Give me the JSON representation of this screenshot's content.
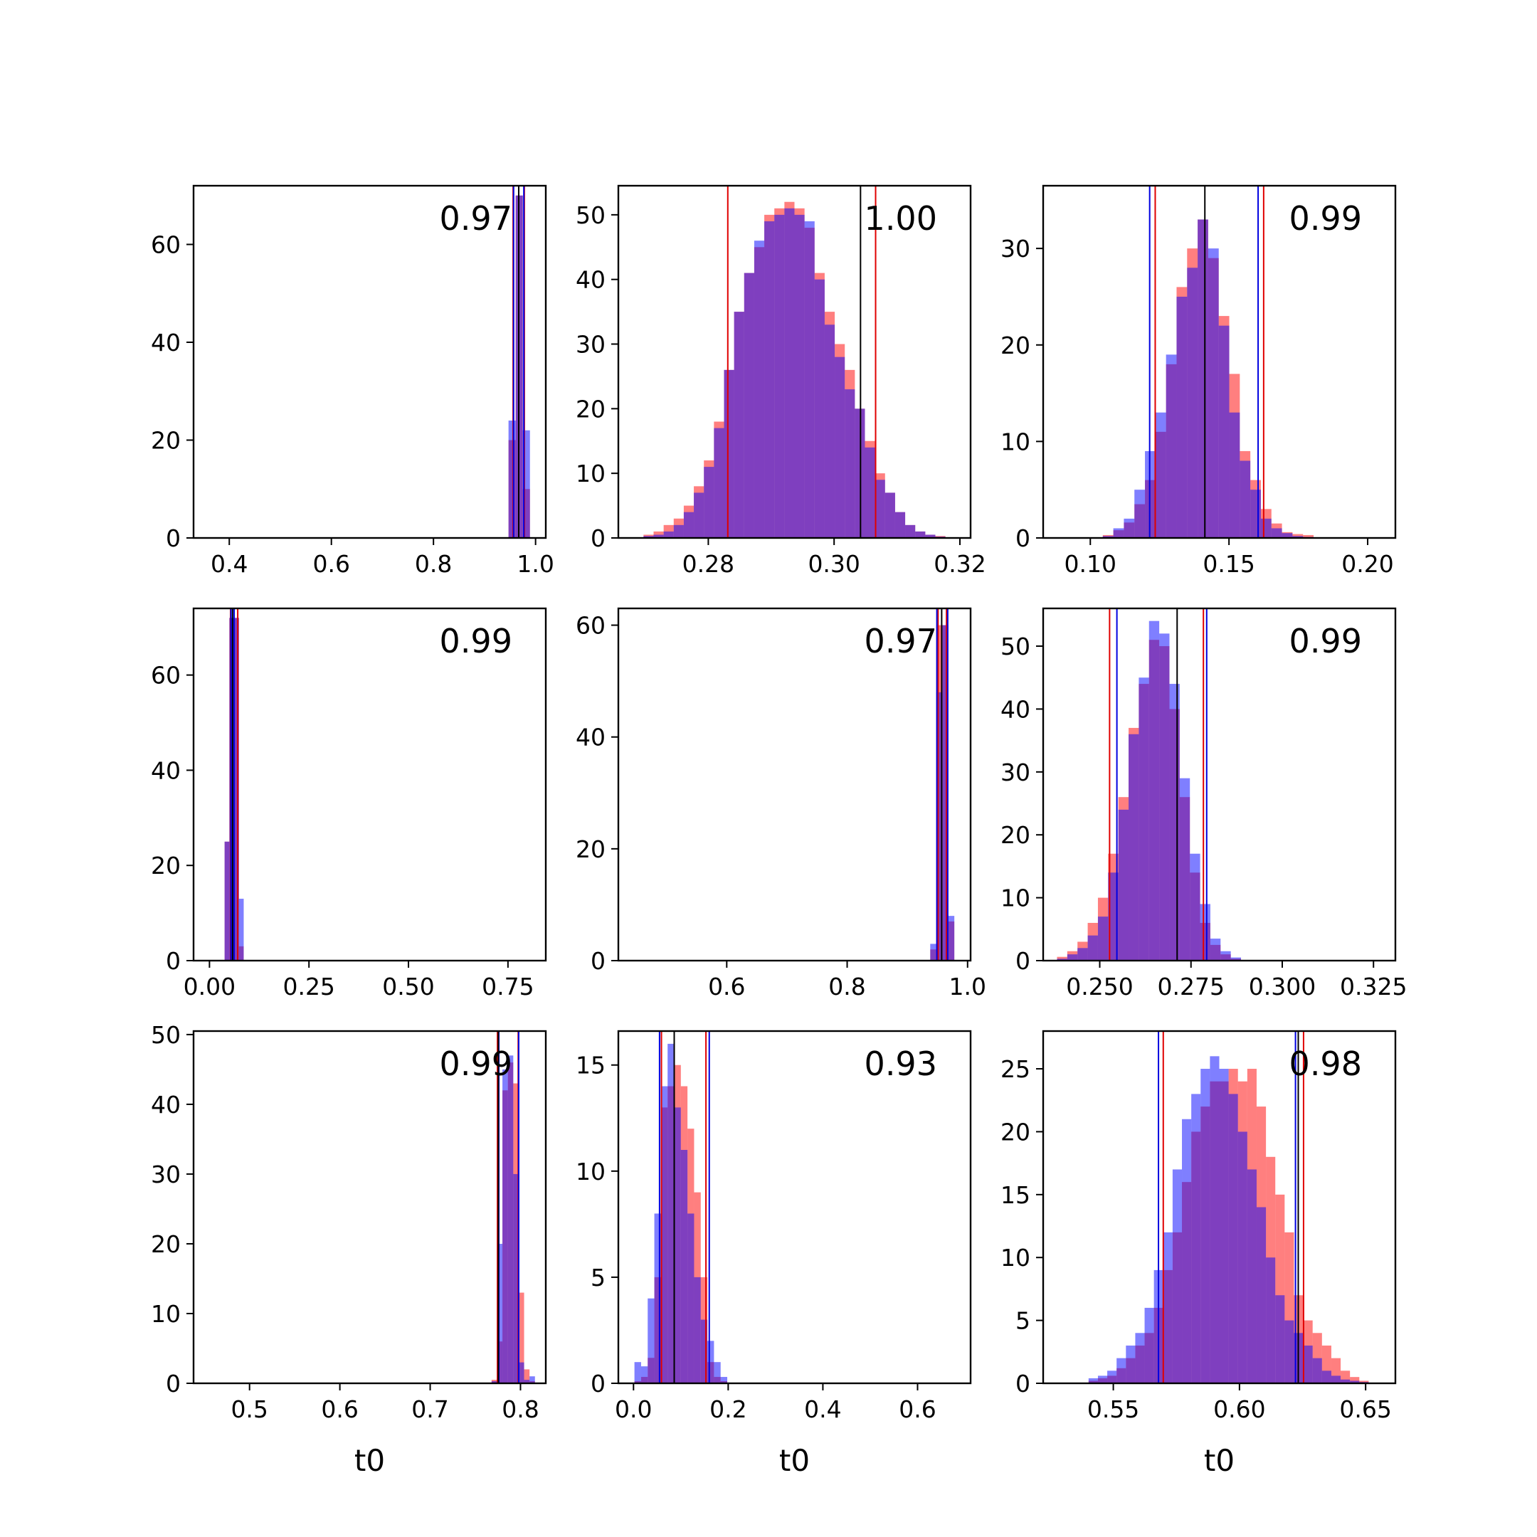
{
  "figure": {
    "background": "#ffffff"
  },
  "colors": {
    "series_a": "#ff0000",
    "series_b": "#0000ff",
    "overlap": "#7f3fbf",
    "truth_line": "#000000"
  },
  "chart_data": [
    {
      "type": "bar",
      "panel": [
        0,
        0
      ],
      "annotation": "0.97",
      "xlabel": "",
      "xlim": [
        0.33,
        1.02
      ],
      "ylim": [
        0,
        72
      ],
      "xticks": [
        0.4,
        0.6,
        0.8,
        1.0
      ],
      "xtick_labels": [
        "0.4",
        "0.6",
        "0.8",
        "1.0"
      ],
      "yticks": [
        0,
        20,
        40,
        60
      ],
      "ytick_labels": [
        "0",
        "20",
        "40",
        "60"
      ],
      "bin_edges": [
        0.947,
        0.961,
        0.975,
        0.989
      ],
      "series": [
        {
          "color": "red",
          "values": [
            20,
            70,
            10
          ]
        },
        {
          "color": "blue",
          "values": [
            24,
            70,
            22
          ]
        }
      ],
      "vlines": [
        {
          "color": "red",
          "x": 0.956
        },
        {
          "color": "red",
          "x": 0.978
        },
        {
          "color": "blue",
          "x": 0.957
        },
        {
          "color": "blue",
          "x": 0.977
        },
        {
          "color": "black",
          "x": 0.967
        }
      ]
    },
    {
      "type": "bar",
      "panel": [
        0,
        1
      ],
      "annotation": "1.00",
      "xlabel": "",
      "xlim": [
        0.2657,
        0.3217
      ],
      "ylim": [
        0,
        54.5
      ],
      "xticks": [
        0.28,
        0.3,
        0.32
      ],
      "xtick_labels": [
        "0.28",
        "0.30",
        "0.32"
      ],
      "yticks": [
        0,
        10,
        20,
        30,
        40,
        50
      ],
      "ytick_labels": [
        "0",
        "10",
        "20",
        "30",
        "40",
        "50"
      ],
      "bin_edges": [
        0.2697,
        0.2713,
        0.2729,
        0.2745,
        0.2761,
        0.2777,
        0.2793,
        0.2809,
        0.2825,
        0.2841,
        0.2857,
        0.2873,
        0.2889,
        0.2905,
        0.2921,
        0.2937,
        0.2953,
        0.2969,
        0.2985,
        0.3001,
        0.3017,
        0.3033,
        0.3049,
        0.3065,
        0.3081,
        0.3097,
        0.3113,
        0.3129,
        0.3145,
        0.3161,
        0.3177
      ],
      "series": [
        {
          "color": "red",
          "values": [
            0.5,
            1,
            2,
            3,
            5,
            8,
            12,
            18,
            26,
            35,
            41,
            45,
            50,
            51,
            52,
            51,
            48,
            41,
            35,
            30,
            26,
            20,
            15,
            10,
            7,
            4,
            2,
            1,
            0.5,
            0.3
          ]
        },
        {
          "color": "blue",
          "values": [
            0.3,
            0.5,
            1,
            2,
            4,
            7,
            11,
            17,
            26,
            35,
            41,
            46,
            49,
            50,
            51,
            50,
            49,
            40,
            33,
            28,
            23,
            20,
            14,
            9,
            7,
            4,
            2,
            1,
            0.5,
            0.2
          ]
        }
      ],
      "vlines": [
        {
          "color": "red",
          "x": 0.2831
        },
        {
          "color": "red",
          "x": 0.3066
        },
        {
          "color": "black",
          "x": 0.3042
        }
      ]
    },
    {
      "type": "bar",
      "panel": [
        0,
        2
      ],
      "annotation": "0.99",
      "xlabel": "",
      "xlim": [
        0.083,
        0.21
      ],
      "ylim": [
        0,
        36.5
      ],
      "xticks": [
        0.1,
        0.15,
        0.2
      ],
      "xtick_labels": [
        "0.10",
        "0.15",
        "0.20"
      ],
      "yticks": [
        0,
        10,
        20,
        30
      ],
      "ytick_labels": [
        "0",
        "10",
        "20",
        "30"
      ],
      "bin_edges": [
        0.1045,
        0.1083,
        0.1121,
        0.1159,
        0.1197,
        0.1235,
        0.1273,
        0.1311,
        0.1349,
        0.1387,
        0.1425,
        0.1463,
        0.1501,
        0.1539,
        0.1577,
        0.1615,
        0.1653,
        0.1691,
        0.1729,
        0.1767,
        0.1805
      ],
      "series": [
        {
          "color": "red",
          "values": [
            0.3,
            0.8,
            1.6,
            3.5,
            6,
            11,
            18,
            26,
            30,
            33,
            29,
            23,
            17,
            9,
            6,
            3,
            1.5,
            0.6,
            0.4,
            0.3
          ]
        },
        {
          "color": "blue",
          "values": [
            0.2,
            1,
            2,
            5,
            9,
            13,
            19,
            25,
            28,
            33,
            30,
            22,
            13,
            8,
            5,
            2,
            1,
            0.5,
            0.2,
            0.1
          ]
        }
      ],
      "vlines": [
        {
          "color": "red",
          "x": 0.1234
        },
        {
          "color": "red",
          "x": 0.1625
        },
        {
          "color": "blue",
          "x": 0.1214
        },
        {
          "color": "blue",
          "x": 0.1605
        },
        {
          "color": "black",
          "x": 0.1413
        }
      ]
    },
    {
      "type": "bar",
      "panel": [
        1,
        0
      ],
      "annotation": "0.99",
      "xlabel": "",
      "xlim": [
        -0.04,
        0.845
      ],
      "ylim": [
        0,
        74
      ],
      "xticks": [
        0.0,
        0.25,
        0.5,
        0.75
      ],
      "xtick_labels": [
        "0.00",
        "0.25",
        "0.50",
        "0.75"
      ],
      "yticks": [
        0,
        20,
        40,
        60
      ],
      "ytick_labels": [
        "0",
        "20",
        "40",
        "60"
      ],
      "bin_edges": [
        0.038,
        0.05,
        0.062,
        0.074,
        0.086
      ],
      "series": [
        {
          "color": "red",
          "values": [
            25,
            72,
            72,
            3
          ]
        },
        {
          "color": "blue",
          "values": [
            25,
            72,
            72,
            13
          ]
        }
      ],
      "vlines": [
        {
          "color": "red",
          "x": 0.053
        },
        {
          "color": "red",
          "x": 0.071
        },
        {
          "color": "blue",
          "x": 0.054
        },
        {
          "color": "blue",
          "x": 0.062
        },
        {
          "color": "black",
          "x": 0.058
        }
      ]
    },
    {
      "type": "bar",
      "panel": [
        1,
        1
      ],
      "annotation": "0.97",
      "xlabel": "",
      "xlim": [
        0.42,
        1.005
      ],
      "ylim": [
        0,
        63
      ],
      "xticks": [
        0.6,
        0.8,
        1.0
      ],
      "xtick_labels": [
        "0.6",
        "0.8",
        "1.0"
      ],
      "yticks": [
        0,
        20,
        40,
        60
      ],
      "ytick_labels": [
        "0",
        "20",
        "40",
        "60"
      ],
      "bin_edges": [
        0.938,
        0.948,
        0.958,
        0.968,
        0.978
      ],
      "series": [
        {
          "color": "red",
          "values": [
            2,
            60,
            60,
            7
          ]
        },
        {
          "color": "blue",
          "values": [
            3,
            48,
            60,
            8
          ]
        }
      ],
      "vlines": [
        {
          "color": "red",
          "x": 0.951
        },
        {
          "color": "red",
          "x": 0.965
        },
        {
          "color": "blue",
          "x": 0.949
        },
        {
          "color": "blue",
          "x": 0.967
        },
        {
          "color": "black",
          "x": 0.957
        }
      ]
    },
    {
      "type": "bar",
      "panel": [
        1,
        2
      ],
      "annotation": "0.99",
      "xlabel": "",
      "xlim": [
        0.2345,
        0.331
      ],
      "ylim": [
        0,
        56
      ],
      "xticks": [
        0.25,
        0.275,
        0.3,
        0.325
      ],
      "xtick_labels": [
        "0.250",
        "0.275",
        "0.300",
        "0.325"
      ],
      "yticks": [
        0,
        10,
        20,
        30,
        40,
        50
      ],
      "ytick_labels": [
        "0",
        "10",
        "20",
        "30",
        "40",
        "50"
      ],
      "bin_edges": [
        0.2383,
        0.2411,
        0.2439,
        0.2467,
        0.2495,
        0.2523,
        0.2551,
        0.2579,
        0.2607,
        0.2635,
        0.2663,
        0.2691,
        0.2719,
        0.2747,
        0.2775,
        0.2803,
        0.2831,
        0.2859,
        0.2887
      ],
      "series": [
        {
          "color": "red",
          "values": [
            0.6,
            1.5,
            3,
            6,
            10,
            17,
            26,
            37,
            44,
            51,
            50,
            40,
            26,
            14,
            6,
            2.5,
            1,
            0.3
          ]
        },
        {
          "color": "blue",
          "values": [
            0.3,
            1,
            2,
            4,
            7,
            14,
            24,
            36,
            45,
            54,
            52,
            44,
            29,
            17,
            9,
            3.5,
            1.5,
            0.5
          ]
        }
      ],
      "vlines": [
        {
          "color": "red",
          "x": 0.2527
        },
        {
          "color": "red",
          "x": 0.2784
        },
        {
          "color": "blue",
          "x": 0.2547
        },
        {
          "color": "blue",
          "x": 0.2793
        },
        {
          "color": "black",
          "x": 0.2712
        }
      ]
    },
    {
      "type": "bar",
      "panel": [
        2,
        0
      ],
      "annotation": "0.99",
      "xlabel": "t0",
      "xlim": [
        0.438,
        0.828
      ],
      "ylim": [
        0,
        50.5
      ],
      "xticks": [
        0.5,
        0.6,
        0.7,
        0.8
      ],
      "xtick_labels": [
        "0.5",
        "0.6",
        "0.7",
        "0.8"
      ],
      "yticks": [
        0,
        10,
        20,
        30,
        40,
        50
      ],
      "ytick_labels": [
        "0",
        "10",
        "20",
        "30",
        "40",
        "50"
      ],
      "bin_edges": [
        0.768,
        0.774,
        0.78,
        0.786,
        0.792,
        0.798,
        0.804,
        0.81,
        0.816
      ],
      "series": [
        {
          "color": "red",
          "values": [
            0.5,
            6,
            42,
            46,
            43,
            13,
            2,
            0.3
          ]
        },
        {
          "color": "blue",
          "values": [
            0.3,
            20,
            45,
            47,
            30,
            3,
            0.5,
            1
          ]
        }
      ],
      "vlines": [
        {
          "color": "red",
          "x": 0.7745
        },
        {
          "color": "red",
          "x": 0.7975
        },
        {
          "color": "blue",
          "x": 0.776
        },
        {
          "color": "blue",
          "x": 0.798
        },
        {
          "color": "black",
          "x": 0.7755
        }
      ]
    },
    {
      "type": "bar",
      "panel": [
        2,
        1
      ],
      "annotation": "0.93",
      "xlabel": "t0",
      "xlim": [
        -0.032,
        0.712
      ],
      "ylim": [
        0,
        16.6
      ],
      "xticks": [
        0.0,
        0.2,
        0.4,
        0.6
      ],
      "xtick_labels": [
        "0.0",
        "0.2",
        "0.4",
        "0.6"
      ],
      "yticks": [
        0,
        5,
        10,
        15
      ],
      "ytick_labels": [
        "0",
        "5",
        "10",
        "15"
      ],
      "bin_edges": [
        0.002,
        0.016,
        0.03,
        0.044,
        0.058,
        0.072,
        0.086,
        0.1,
        0.114,
        0.128,
        0.142,
        0.156,
        0.17,
        0.184,
        0.198
      ],
      "series": [
        {
          "color": "red",
          "values": [
            0.1,
            0.3,
            1.2,
            5,
            13,
            14,
            15,
            14,
            12,
            9,
            5,
            1,
            0.3,
            0.1
          ]
        },
        {
          "color": "blue",
          "values": [
            1,
            0.8,
            4,
            8,
            14,
            16,
            13,
            11,
            8,
            5,
            3,
            2,
            1,
            0.3
          ]
        }
      ],
      "vlines": [
        {
          "color": "red",
          "x": 0.059
        },
        {
          "color": "red",
          "x": 0.153
        },
        {
          "color": "blue",
          "x": 0.055
        },
        {
          "color": "blue",
          "x": 0.16
        },
        {
          "color": "black",
          "x": 0.086
        }
      ]
    },
    {
      "type": "bar",
      "panel": [
        2,
        2
      ],
      "annotation": "0.98",
      "xlabel": "t0",
      "xlim": [
        0.5222,
        0.6618
      ],
      "ylim": [
        0,
        28
      ],
      "xticks": [
        0.55,
        0.6,
        0.65
      ],
      "xtick_labels": [
        "0.55",
        "0.60",
        "0.65"
      ],
      "yticks": [
        0,
        5,
        10,
        15,
        20,
        25
      ],
      "ytick_labels": [
        "0",
        "5",
        "10",
        "15",
        "20",
        "25"
      ],
      "bin_edges": [
        0.5402,
        0.5439,
        0.5476,
        0.5513,
        0.555,
        0.5587,
        0.5624,
        0.5661,
        0.5698,
        0.5735,
        0.5772,
        0.5809,
        0.5846,
        0.5883,
        0.592,
        0.5957,
        0.5994,
        0.6031,
        0.6068,
        0.6105,
        0.6142,
        0.6179,
        0.6216,
        0.6253,
        0.629,
        0.6327,
        0.6364,
        0.6401,
        0.6438,
        0.6475,
        0.6512
      ],
      "series": [
        {
          "color": "red",
          "values": [
            0.2,
            0.4,
            0.6,
            1.2,
            2,
            3,
            4,
            6,
            9,
            12,
            16,
            20,
            22,
            24,
            24,
            25,
            24,
            25,
            22,
            18,
            15,
            12,
            7,
            5,
            4,
            3,
            2,
            1,
            0.5,
            0.2
          ]
        },
        {
          "color": "blue",
          "values": [
            0.4,
            0.6,
            1,
            2,
            3,
            4,
            6,
            9,
            12,
            17,
            21,
            23,
            25,
            26,
            25,
            23,
            20,
            17,
            14,
            10,
            7,
            5,
            4,
            3,
            2,
            1,
            0.6,
            0.3,
            0.2,
            0.1
          ]
        }
      ],
      "vlines": [
        {
          "color": "red",
          "x": 0.5698
        },
        {
          "color": "red",
          "x": 0.6254
        },
        {
          "color": "blue",
          "x": 0.5679
        },
        {
          "color": "blue",
          "x": 0.6222
        },
        {
          "color": "black",
          "x": 0.6233
        }
      ]
    }
  ]
}
